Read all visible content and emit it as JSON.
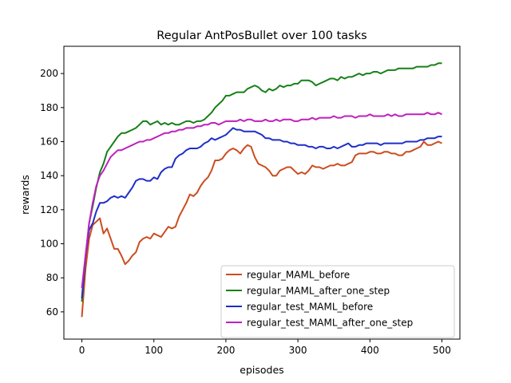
{
  "chart_data": {
    "type": "line",
    "title": "Regular AntPosBullet over 100 tasks",
    "xlabel": "episodes",
    "ylabel": "rewards",
    "xlim": [
      -25,
      525
    ],
    "ylim": [
      44,
      216
    ],
    "xticks": [
      0,
      100,
      200,
      300,
      400,
      500
    ],
    "yticks": [
      60,
      80,
      100,
      120,
      140,
      160,
      180,
      200
    ],
    "grid": false,
    "legend_position": "lower-right",
    "series": [
      {
        "name": "regular_MAML_before",
        "color": "#cc4c1f",
        "x": [
          0,
          5,
          10,
          15,
          20,
          25,
          30,
          35,
          40,
          45,
          50,
          55,
          60,
          65,
          70,
          75,
          80,
          85,
          90,
          95,
          100,
          105,
          110,
          115,
          120,
          125,
          130,
          135,
          140,
          145,
          150,
          155,
          160,
          165,
          170,
          175,
          180,
          185,
          190,
          195,
          200,
          205,
          210,
          215,
          220,
          225,
          230,
          235,
          240,
          245,
          250,
          255,
          260,
          265,
          270,
          275,
          280,
          285,
          290,
          295,
          300,
          305,
          310,
          315,
          320,
          325,
          330,
          335,
          340,
          345,
          350,
          355,
          360,
          365,
          370,
          375,
          380,
          385,
          390,
          395,
          400,
          405,
          410,
          415,
          420,
          425,
          430,
          435,
          440,
          445,
          450,
          455,
          460,
          465,
          470,
          475,
          480,
          485,
          490,
          495,
          500
        ],
        "values": [
          57,
          85,
          103,
          111,
          113,
          115,
          106,
          109,
          103,
          97,
          97,
          93,
          88,
          90,
          93,
          95,
          101,
          103,
          104,
          103,
          106,
          105,
          104,
          107,
          110,
          109,
          110,
          116,
          120,
          124,
          129,
          128,
          130,
          134,
          137,
          139,
          143,
          149,
          149,
          150,
          153,
          155,
          156,
          155,
          153,
          156,
          158,
          157,
          151,
          147,
          146,
          145,
          143,
          140,
          140,
          143,
          144,
          145,
          145,
          143,
          141,
          142,
          141,
          143,
          146,
          145,
          145,
          144,
          145,
          146,
          146,
          147,
          146,
          146,
          147,
          148,
          152,
          153,
          153,
          153,
          154,
          154,
          153,
          153,
          154,
          154,
          153,
          153,
          152,
          152,
          154,
          154,
          155,
          156,
          157,
          160,
          158,
          158,
          159,
          160,
          159
        ]
      },
      {
        "name": "regular_MAML_after_one_step",
        "color": "#178017",
        "x": [
          0,
          5,
          10,
          15,
          20,
          25,
          30,
          35,
          40,
          45,
          50,
          55,
          60,
          65,
          70,
          75,
          80,
          85,
          90,
          95,
          100,
          105,
          110,
          115,
          120,
          125,
          130,
          135,
          140,
          145,
          150,
          155,
          160,
          165,
          170,
          175,
          180,
          185,
          190,
          195,
          200,
          205,
          210,
          215,
          220,
          225,
          230,
          235,
          240,
          245,
          250,
          255,
          260,
          265,
          270,
          275,
          280,
          285,
          290,
          295,
          300,
          305,
          310,
          315,
          320,
          325,
          330,
          335,
          340,
          345,
          350,
          355,
          360,
          365,
          370,
          375,
          380,
          385,
          390,
          395,
          400,
          405,
          410,
          415,
          420,
          425,
          430,
          435,
          440,
          445,
          450,
          455,
          460,
          465,
          470,
          475,
          480,
          485,
          490,
          495,
          500
        ],
        "values": [
          66,
          92,
          112,
          122,
          133,
          142,
          147,
          154,
          157,
          160,
          163,
          165,
          165,
          166,
          167,
          168,
          170,
          172,
          172,
          170,
          171,
          172,
          170,
          171,
          170,
          171,
          170,
          170,
          171,
          172,
          172,
          171,
          172,
          172,
          173,
          175,
          177,
          180,
          182,
          184,
          187,
          187,
          188,
          189,
          189,
          189,
          191,
          192,
          193,
          192,
          190,
          189,
          191,
          190,
          191,
          193,
          192,
          193,
          193,
          194,
          194,
          196,
          196,
          196,
          195,
          193,
          194,
          195,
          196,
          197,
          197,
          196,
          198,
          197,
          198,
          198,
          199,
          200,
          199,
          200,
          200,
          201,
          201,
          200,
          201,
          202,
          202,
          202,
          203,
          203,
          203,
          203,
          203,
          204,
          204,
          204,
          204,
          205,
          205,
          206,
          206
        ]
      },
      {
        "name": "regular_test_MAML_before",
        "color": "#1f2ec8",
        "x": [
          0,
          5,
          10,
          15,
          20,
          25,
          30,
          35,
          40,
          45,
          50,
          55,
          60,
          65,
          70,
          75,
          80,
          85,
          90,
          95,
          100,
          105,
          110,
          115,
          120,
          125,
          130,
          135,
          140,
          145,
          150,
          155,
          160,
          165,
          170,
          175,
          180,
          185,
          190,
          195,
          200,
          205,
          210,
          215,
          220,
          225,
          230,
          235,
          240,
          245,
          250,
          255,
          260,
          265,
          270,
          275,
          280,
          285,
          290,
          295,
          300,
          305,
          310,
          315,
          320,
          325,
          330,
          335,
          340,
          345,
          350,
          355,
          360,
          365,
          370,
          375,
          380,
          385,
          390,
          395,
          400,
          405,
          410,
          415,
          420,
          425,
          430,
          435,
          440,
          445,
          450,
          455,
          460,
          465,
          470,
          475,
          480,
          485,
          490,
          495,
          500
        ],
        "values": [
          68,
          93,
          108,
          112,
          119,
          124,
          124,
          125,
          127,
          128,
          127,
          128,
          127,
          130,
          133,
          137,
          138,
          138,
          137,
          137,
          139,
          138,
          142,
          144,
          145,
          145,
          150,
          152,
          153,
          155,
          156,
          156,
          156,
          157,
          159,
          160,
          162,
          161,
          162,
          163,
          164,
          166,
          168,
          167,
          167,
          166,
          166,
          166,
          166,
          165,
          164,
          162,
          162,
          161,
          161,
          161,
          160,
          160,
          159,
          159,
          158,
          158,
          158,
          157,
          157,
          156,
          157,
          157,
          156,
          156,
          157,
          156,
          157,
          158,
          159,
          157,
          157,
          158,
          158,
          159,
          159,
          159,
          159,
          158,
          159,
          159,
          159,
          159,
          159,
          159,
          160,
          160,
          160,
          160,
          161,
          161,
          162,
          162,
          162,
          163,
          163
        ]
      },
      {
        "name": "regular_test_MAML_after_one_step",
        "color": "#bf1fbf",
        "x": [
          0,
          5,
          10,
          15,
          20,
          25,
          30,
          35,
          40,
          45,
          50,
          55,
          60,
          65,
          70,
          75,
          80,
          85,
          90,
          95,
          100,
          105,
          110,
          115,
          120,
          125,
          130,
          135,
          140,
          145,
          150,
          155,
          160,
          165,
          170,
          175,
          180,
          185,
          190,
          195,
          200,
          205,
          210,
          215,
          220,
          225,
          230,
          235,
          240,
          245,
          250,
          255,
          260,
          265,
          270,
          275,
          280,
          285,
          290,
          295,
          300,
          305,
          310,
          315,
          320,
          325,
          330,
          335,
          340,
          345,
          350,
          355,
          360,
          365,
          370,
          375,
          380,
          385,
          390,
          395,
          400,
          405,
          410,
          415,
          420,
          425,
          430,
          435,
          440,
          445,
          450,
          455,
          460,
          465,
          470,
          475,
          480,
          485,
          490,
          495,
          500
        ],
        "values": [
          74,
          93,
          112,
          124,
          134,
          140,
          143,
          147,
          151,
          153,
          155,
          155,
          156,
          157,
          158,
          159,
          160,
          160,
          161,
          161,
          162,
          163,
          164,
          165,
          165,
          166,
          166,
          167,
          167,
          168,
          168,
          168,
          169,
          169,
          170,
          170,
          171,
          171,
          170,
          171,
          172,
          172,
          172,
          172,
          173,
          172,
          173,
          173,
          172,
          172,
          172,
          173,
          172,
          172,
          173,
          172,
          173,
          173,
          173,
          172,
          172,
          173,
          173,
          173,
          174,
          173,
          174,
          174,
          174,
          174,
          175,
          174,
          174,
          175,
          175,
          175,
          174,
          175,
          175,
          175,
          176,
          175,
          175,
          175,
          175,
          176,
          175,
          176,
          175,
          175,
          176,
          176,
          176,
          176,
          176,
          176,
          177,
          176,
          176,
          177,
          176
        ]
      }
    ]
  }
}
